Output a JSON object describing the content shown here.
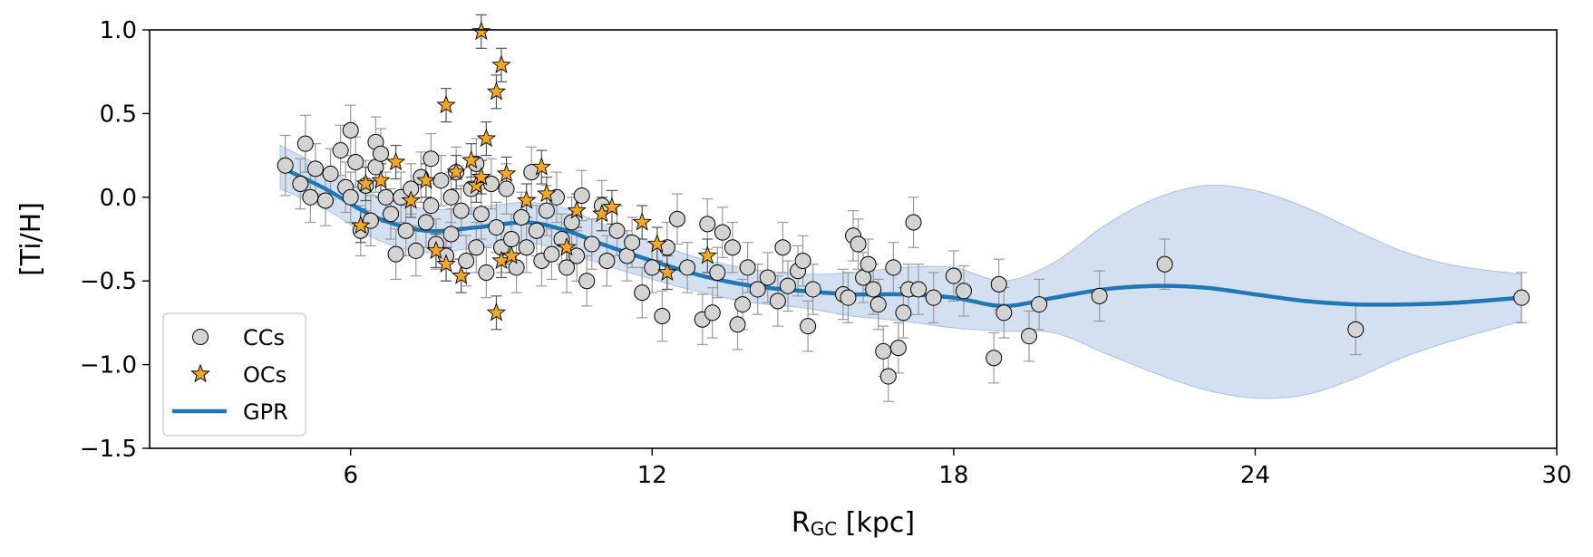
{
  "chart_data": {
    "type": "scatter",
    "title": "",
    "xlabel_main": "R",
    "xlabel_sub": "GC",
    "xlabel_unit": " [kpc]",
    "ylabel": "[Ti/H]",
    "xlim": [
      2,
      30
    ],
    "ylim": [
      -1.5,
      1.0
    ],
    "xticks": [
      6,
      12,
      18,
      24,
      30
    ],
    "yticks": [
      1.0,
      0.5,
      0.0,
      -0.5,
      -1.0,
      -1.5
    ],
    "ytick_labels": [
      "1.0",
      "0.5",
      "0.0",
      "−0.5",
      "−1.0",
      "−1.5"
    ],
    "legend_position": "lower-left",
    "colors": {
      "cc_fill": "#d3d3d3",
      "oc_fill": "#f5a623",
      "gpr_line": "#1f77b4",
      "gpr_band": "#aec7e8",
      "errorbar": "#999999"
    },
    "series": [
      {
        "name": "CCs",
        "marker": "circle",
        "points": [
          [
            4.7,
            0.19,
            0.18
          ],
          [
            5.1,
            0.32,
            0.17
          ],
          [
            5.0,
            0.08,
            0.15
          ],
          [
            5.2,
            0.0,
            0.15
          ],
          [
            5.3,
            0.17,
            0.15
          ],
          [
            5.5,
            -0.02,
            0.15
          ],
          [
            5.6,
            0.14,
            0.15
          ],
          [
            5.8,
            0.28,
            0.15
          ],
          [
            5.9,
            0.06,
            0.15
          ],
          [
            6.0,
            0.4,
            0.15
          ],
          [
            6.0,
            0.0,
            0.15
          ],
          [
            6.1,
            0.21,
            0.15
          ],
          [
            6.2,
            -0.2,
            0.15
          ],
          [
            6.3,
            0.07,
            0.15
          ],
          [
            6.4,
            -0.14,
            0.15
          ],
          [
            6.5,
            0.33,
            0.15
          ],
          [
            6.5,
            0.18,
            0.15
          ],
          [
            6.6,
            0.26,
            0.15
          ],
          [
            6.7,
            0.0,
            0.15
          ],
          [
            6.8,
            -0.1,
            0.15
          ],
          [
            6.9,
            -0.34,
            0.15
          ],
          [
            7.0,
            0.0,
            0.15
          ],
          [
            7.1,
            -0.2,
            0.15
          ],
          [
            7.2,
            0.05,
            0.15
          ],
          [
            7.3,
            -0.32,
            0.15
          ],
          [
            7.4,
            0.12,
            0.15
          ],
          [
            7.5,
            -0.15,
            0.15
          ],
          [
            7.6,
            0.23,
            0.15
          ],
          [
            7.6,
            -0.05,
            0.15
          ],
          [
            7.7,
            -0.28,
            0.15
          ],
          [
            7.8,
            0.1,
            0.15
          ],
          [
            7.9,
            -0.35,
            0.15
          ],
          [
            8.0,
            0.0,
            0.15
          ],
          [
            8.0,
            -0.22,
            0.15
          ],
          [
            8.1,
            0.15,
            0.15
          ],
          [
            8.2,
            -0.08,
            0.15
          ],
          [
            8.3,
            -0.38,
            0.15
          ],
          [
            8.4,
            0.05,
            0.15
          ],
          [
            8.5,
            -0.3,
            0.15
          ],
          [
            8.5,
            0.2,
            0.15
          ],
          [
            8.6,
            -0.1,
            0.15
          ],
          [
            8.7,
            -0.45,
            0.15
          ],
          [
            8.8,
            0.08,
            0.15
          ],
          [
            8.9,
            -0.18,
            0.15
          ],
          [
            9.0,
            -0.3,
            0.15
          ],
          [
            9.1,
            0.05,
            0.15
          ],
          [
            9.2,
            -0.25,
            0.15
          ],
          [
            9.3,
            -0.42,
            0.15
          ],
          [
            9.4,
            -0.12,
            0.15
          ],
          [
            9.5,
            -0.3,
            0.15
          ],
          [
            9.6,
            0.15,
            0.15
          ],
          [
            9.7,
            -0.2,
            0.15
          ],
          [
            9.8,
            -0.38,
            0.15
          ],
          [
            9.9,
            -0.08,
            0.15
          ],
          [
            10.0,
            -0.34,
            0.15
          ],
          [
            10.1,
            0.0,
            0.15
          ],
          [
            10.2,
            -0.25,
            0.15
          ],
          [
            10.3,
            -0.42,
            0.15
          ],
          [
            10.4,
            -0.15,
            0.15
          ],
          [
            10.5,
            -0.35,
            0.15
          ],
          [
            10.6,
            0.01,
            0.15
          ],
          [
            10.7,
            -0.5,
            0.15
          ],
          [
            10.8,
            -0.28,
            0.15
          ],
          [
            11.0,
            -0.05,
            0.15
          ],
          [
            11.1,
            -0.38,
            0.15
          ],
          [
            11.3,
            -0.2,
            0.15
          ],
          [
            11.5,
            -0.35,
            0.15
          ],
          [
            11.6,
            -0.27,
            0.15
          ],
          [
            11.8,
            -0.57,
            0.15
          ],
          [
            12.0,
            -0.42,
            0.15
          ],
          [
            12.2,
            -0.71,
            0.15
          ],
          [
            12.3,
            -0.3,
            0.15
          ],
          [
            12.5,
            -0.13,
            0.15
          ],
          [
            12.7,
            -0.42,
            0.15
          ],
          [
            13.0,
            -0.73,
            0.15
          ],
          [
            13.1,
            -0.16,
            0.15
          ],
          [
            13.2,
            -0.69,
            0.15
          ],
          [
            13.3,
            -0.45,
            0.15
          ],
          [
            13.4,
            -0.21,
            0.15
          ],
          [
            13.6,
            -0.3,
            0.15
          ],
          [
            13.7,
            -0.76,
            0.15
          ],
          [
            13.8,
            -0.64,
            0.15
          ],
          [
            13.9,
            -0.42,
            0.15
          ],
          [
            14.1,
            -0.55,
            0.15
          ],
          [
            14.3,
            -0.48,
            0.15
          ],
          [
            14.5,
            -0.62,
            0.15
          ],
          [
            14.6,
            -0.3,
            0.15
          ],
          [
            14.7,
            -0.53,
            0.15
          ],
          [
            14.9,
            -0.44,
            0.15
          ],
          [
            15.0,
            -0.38,
            0.15
          ],
          [
            15.1,
            -0.77,
            0.15
          ],
          [
            15.2,
            -0.55,
            0.15
          ],
          [
            15.8,
            -0.58,
            0.15
          ],
          [
            15.9,
            -0.6,
            0.15
          ],
          [
            16.0,
            -0.23,
            0.15
          ],
          [
            16.1,
            -0.28,
            0.15
          ],
          [
            16.2,
            -0.48,
            0.15
          ],
          [
            16.3,
            -0.4,
            0.15
          ],
          [
            16.4,
            -0.55,
            0.15
          ],
          [
            16.5,
            -0.64,
            0.15
          ],
          [
            16.6,
            -0.92,
            0.15
          ],
          [
            16.7,
            -1.07,
            0.15
          ],
          [
            16.8,
            -0.42,
            0.15
          ],
          [
            16.9,
            -0.9,
            0.15
          ],
          [
            17.0,
            -0.69,
            0.15
          ],
          [
            17.1,
            -0.55,
            0.15
          ],
          [
            17.2,
            -0.15,
            0.15
          ],
          [
            17.3,
            -0.55,
            0.15
          ],
          [
            17.6,
            -0.6,
            0.15
          ],
          [
            18.0,
            -0.47,
            0.15
          ],
          [
            18.2,
            -0.56,
            0.15
          ],
          [
            18.8,
            -0.96,
            0.15
          ],
          [
            18.9,
            -0.52,
            0.15
          ],
          [
            19.0,
            -0.69,
            0.15
          ],
          [
            19.5,
            -0.83,
            0.15
          ],
          [
            19.7,
            -0.64,
            0.15
          ],
          [
            20.9,
            -0.59,
            0.15
          ],
          [
            22.2,
            -0.4,
            0.15
          ],
          [
            26.0,
            -0.79,
            0.15
          ],
          [
            29.3,
            -0.6,
            0.15
          ]
        ]
      },
      {
        "name": "OCs",
        "marker": "star",
        "points": [
          [
            6.2,
            -0.17,
            0.1
          ],
          [
            6.3,
            0.08,
            0.1
          ],
          [
            6.6,
            0.1,
            0.1
          ],
          [
            6.9,
            0.21,
            0.1
          ],
          [
            7.2,
            -0.02,
            0.1
          ],
          [
            7.5,
            0.1,
            0.1
          ],
          [
            7.7,
            -0.32,
            0.1
          ],
          [
            7.9,
            -0.4,
            0.1
          ],
          [
            7.9,
            0.55,
            0.1
          ],
          [
            8.1,
            0.15,
            0.1
          ],
          [
            8.2,
            -0.47,
            0.1
          ],
          [
            8.4,
            0.22,
            0.1
          ],
          [
            8.5,
            0.07,
            0.1
          ],
          [
            8.6,
            0.12,
            0.1
          ],
          [
            8.6,
            0.99,
            0.1
          ],
          [
            8.7,
            0.35,
            0.1
          ],
          [
            8.9,
            0.63,
            0.1
          ],
          [
            8.9,
            -0.69,
            0.1
          ],
          [
            9.0,
            -0.38,
            0.1
          ],
          [
            9.0,
            0.79,
            0.1
          ],
          [
            9.1,
            0.14,
            0.1
          ],
          [
            9.2,
            -0.35,
            0.1
          ],
          [
            9.5,
            -0.02,
            0.1
          ],
          [
            9.8,
            0.18,
            0.1
          ],
          [
            9.9,
            0.02,
            0.1
          ],
          [
            10.3,
            -0.3,
            0.1
          ],
          [
            10.5,
            -0.08,
            0.1
          ],
          [
            11.0,
            -0.1,
            0.1
          ],
          [
            11.2,
            -0.06,
            0.1
          ],
          [
            11.8,
            -0.15,
            0.1
          ],
          [
            12.1,
            -0.28,
            0.1
          ],
          [
            12.3,
            -0.45,
            0.1
          ],
          [
            13.1,
            -0.35,
            0.1
          ]
        ]
      },
      {
        "name": "GPR",
        "marker": "line",
        "x": [
          4.6,
          5.5,
          6.5,
          7.5,
          8.5,
          9.5,
          10.3,
          11.0,
          12.0,
          13.0,
          14.0,
          15.0,
          16.0,
          17.0,
          18.0,
          19.0,
          20.0,
          21.0,
          22.0,
          23.0,
          24.0,
          25.0,
          26.0,
          27.0,
          28.0,
          29.3
        ],
        "y": [
          0.18,
          0.05,
          -0.12,
          -0.2,
          -0.18,
          -0.15,
          -0.2,
          -0.28,
          -0.38,
          -0.47,
          -0.53,
          -0.56,
          -0.58,
          -0.58,
          -0.6,
          -0.65,
          -0.6,
          -0.55,
          -0.53,
          -0.54,
          -0.58,
          -0.62,
          -0.64,
          -0.64,
          -0.63,
          -0.6
        ],
        "lower": [
          0.05,
          -0.07,
          -0.25,
          -0.33,
          -0.3,
          -0.27,
          -0.33,
          -0.4,
          -0.49,
          -0.57,
          -0.63,
          -0.66,
          -0.71,
          -0.74,
          -0.78,
          -0.8,
          -0.81,
          -0.93,
          -1.05,
          -1.15,
          -1.2,
          -1.18,
          -1.08,
          -0.95,
          -0.85,
          -0.74
        ],
        "upper": [
          0.31,
          0.17,
          0.01,
          -0.07,
          -0.06,
          -0.03,
          -0.07,
          -0.16,
          -0.27,
          -0.37,
          -0.43,
          -0.46,
          -0.45,
          -0.42,
          -0.42,
          -0.5,
          -0.39,
          -0.17,
          -0.01,
          0.07,
          0.04,
          -0.06,
          -0.2,
          -0.33,
          -0.41,
          -0.46
        ]
      }
    ]
  }
}
